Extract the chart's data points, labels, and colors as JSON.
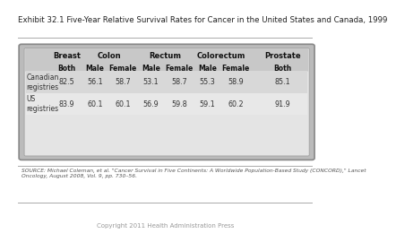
{
  "title": "Exhibit 32.1 Five-Year Relative Survival Rates for Cancer in the United States and Canada, 1999",
  "copyright": "Copyright 2011 Health Administration Press",
  "source": "SOURCE: Michael Coleman, et al. \"Cancer Survival in Five Continents: A Worldwide Population-Based Study (CONCORD),\" Lancet\nOncology, August 2008, Vol. 9, pp. 730–56.",
  "col_headers_row1": [
    "Breast",
    "Colon",
    "Rectum",
    "Colorectum",
    "Prostate"
  ],
  "col_headers_row2": [
    "Both",
    "Male",
    "Female",
    "Male",
    "Female",
    "Male",
    "Female",
    "Both"
  ],
  "row_labels": [
    "Canadian\nregistries",
    "US\nregistries"
  ],
  "data": [
    [
      82.5,
      56.1,
      58.7,
      53.1,
      58.7,
      55.3,
      58.9,
      85.1
    ],
    [
      83.9,
      60.1,
      60.1,
      56.9,
      59.8,
      59.1,
      60.2,
      91.9
    ]
  ],
  "outer_bg": "#ffffff",
  "row0_bg": "#d8d8d8",
  "row1_bg": "#e8e8e8",
  "header_bg": "#c8c8c8",
  "inner_bg": "#e4e4e4"
}
